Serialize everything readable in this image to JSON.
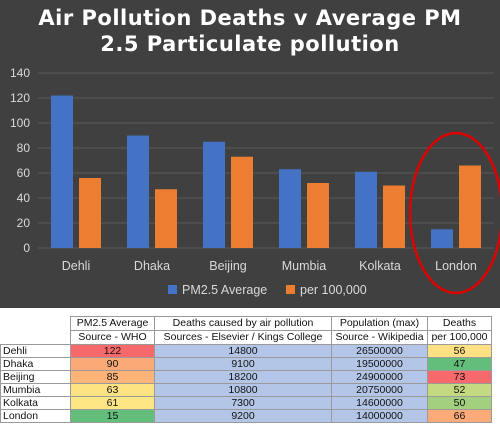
{
  "chart_data": {
    "type": "bar",
    "title_lines": [
      "Air Pollution Deaths v Average PM",
      "2.5 Particulate pollution"
    ],
    "categories": [
      "Dehli",
      "Dhaka",
      "Beijing",
      "Mumbia",
      "Kolkata",
      "London"
    ],
    "series": [
      {
        "name": "PM2.5 Average",
        "values": [
          122,
          90,
          85,
          63,
          61,
          15
        ],
        "color": "#4472c4"
      },
      {
        "name": "per 100,000",
        "values": [
          56,
          47,
          73,
          52,
          50,
          66
        ],
        "color": "#ed7d31"
      }
    ],
    "yticks": [
      "0",
      "20",
      "40",
      "60",
      "80",
      "100",
      "120",
      "140"
    ],
    "ylim": [
      0,
      140
    ],
    "grid": true,
    "legend": "bottom",
    "highlight": {
      "category": "London",
      "shape": "ellipse",
      "color": "#e00000"
    },
    "background": "#404040"
  },
  "table": {
    "headers": [
      {
        "line1": "PM2.5 Average",
        "line2": "Source - WHO"
      },
      {
        "line1": "Deaths caused by air pollution",
        "line2": "Sources - Elsevier / Kings College"
      },
      {
        "line1": "Population (max)",
        "line2": "Source - Wikipedia"
      },
      {
        "line1": "Deaths",
        "line2": "per 100,000"
      }
    ],
    "rows": [
      {
        "city": "Dehli",
        "pm25": "122",
        "deaths": "14800",
        "population": "26500000",
        "per100k": "56",
        "pm_color": "#f8696b",
        "rate_color": "#ffe083"
      },
      {
        "city": "Dhaka",
        "pm25": "90",
        "deaths": "9100",
        "population": "19500000",
        "per100k": "47",
        "pm_color": "#fbaa77",
        "rate_color": "#63be7b"
      },
      {
        "city": "Beijing",
        "pm25": "85",
        "deaths": "18200",
        "population": "24900000",
        "per100k": "73",
        "pm_color": "#fcb479",
        "rate_color": "#f8696b"
      },
      {
        "city": "Mumbia",
        "pm25": "63",
        "deaths": "10800",
        "population": "20750000",
        "per100k": "52",
        "pm_color": "#fee382",
        "rate_color": "#c4d980"
      },
      {
        "city": "Kolkata",
        "pm25": "61",
        "deaths": "7300",
        "population": "14600000",
        "per100k": "50",
        "pm_color": "#ffe684",
        "rate_color": "#a2d07f"
      },
      {
        "city": "London",
        "pm25": "15",
        "deaths": "9200",
        "population": "14000000",
        "per100k": "66",
        "pm_color": "#63be7b",
        "rate_color": "#fcaa78"
      }
    ]
  }
}
